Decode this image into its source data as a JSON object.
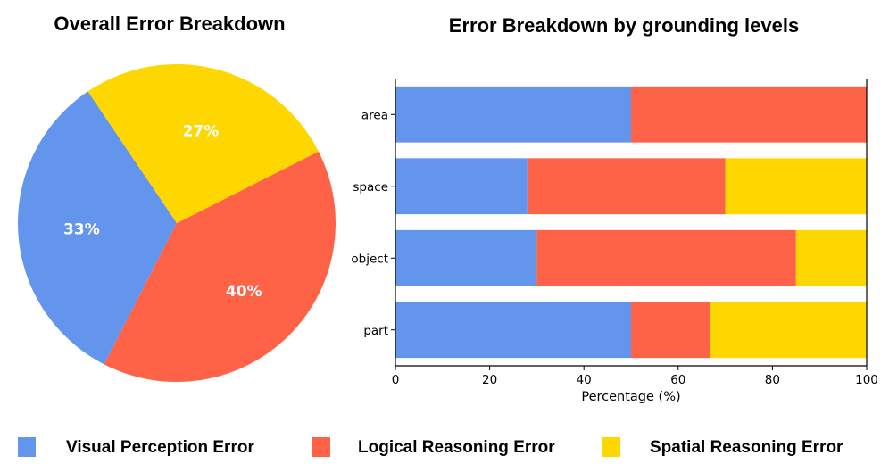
{
  "chart_data": [
    {
      "type": "pie",
      "title": "Overall Error Breakdown",
      "slices": [
        {
          "label": "Visual Perception Error",
          "value": 33,
          "display": "33%",
          "color": "#6495ED"
        },
        {
          "label": "Logical Reasoning Error",
          "value": 40,
          "display": "40%",
          "color": "#FF6347"
        },
        {
          "label": "Spatial Reasoning Error",
          "value": 27,
          "display": "27%",
          "color": "#FFD700"
        }
      ]
    },
    {
      "type": "bar",
      "orientation": "horizontal",
      "stacked": true,
      "title": "Error Breakdown by grounding levels",
      "categories": [
        "area",
        "space",
        "object",
        "part"
      ],
      "xlabel": "Percentage (%)",
      "ylabel": "",
      "xlim": [
        0,
        100
      ],
      "xticks": [
        0,
        20,
        40,
        60,
        80,
        100
      ],
      "series": [
        {
          "name": "Visual Perception Error",
          "color": "#6495ED",
          "values": [
            50,
            28,
            30,
            50
          ]
        },
        {
          "name": "Logical Reasoning Error",
          "color": "#FF6347",
          "values": [
            50,
            42,
            55,
            16.7
          ]
        },
        {
          "name": "Spatial Reasoning Error",
          "color": "#FFD700",
          "values": [
            0,
            30,
            15,
            33.3
          ]
        }
      ]
    }
  ],
  "legend": [
    {
      "label": "Visual Perception Error",
      "color": "#6495ED"
    },
    {
      "label": "Logical Reasoning Error",
      "color": "#FF6347"
    },
    {
      "label": "Spatial Reasoning Error",
      "color": "#FFD700"
    }
  ]
}
